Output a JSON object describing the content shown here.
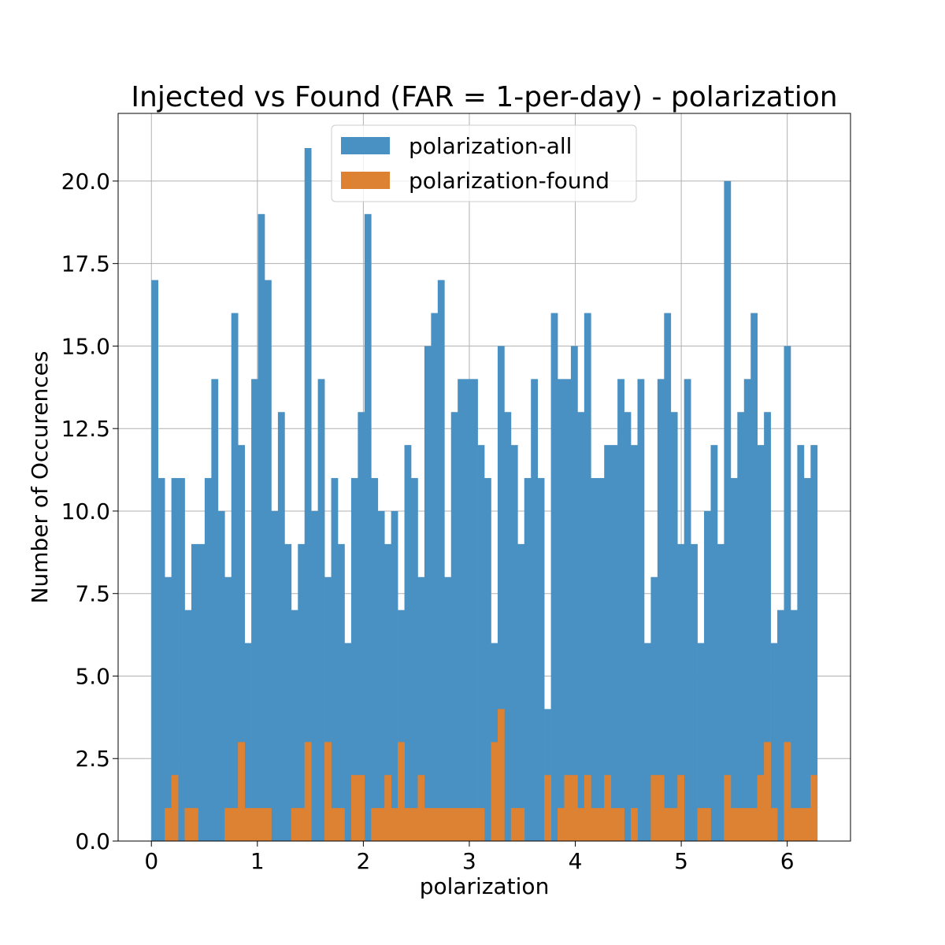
{
  "chart_data": {
    "type": "bar",
    "title": "Injected vs Found (FAR = 1-per-day) - polarization",
    "xlabel": "polarization",
    "ylabel": "Number of Occurences",
    "xlim": [
      -0.314,
      6.597
    ],
    "ylim": [
      0,
      22.05
    ],
    "xticks": [
      0,
      1,
      2,
      3,
      4,
      5,
      6
    ],
    "xtick_labels": [
      "0",
      "1",
      "2",
      "3",
      "4",
      "5",
      "6"
    ],
    "yticks": [
      0,
      2.5,
      5,
      7.5,
      10,
      12.5,
      15,
      17.5,
      20
    ],
    "ytick_labels": [
      "0.0",
      "2.5",
      "5.0",
      "7.5",
      "10.0",
      "12.5",
      "15.0",
      "17.5",
      "20.0"
    ],
    "grid": true,
    "legend_position": "upper-center",
    "bin_range": [
      0,
      6.2832
    ],
    "bins": 100,
    "series": [
      {
        "name": "polarization-all",
        "color": "#4a91c3",
        "values": [
          17,
          11,
          8,
          11,
          11,
          7,
          9,
          9,
          11,
          14,
          10,
          8,
          16,
          12,
          6,
          14,
          19,
          17,
          10,
          13,
          9,
          7,
          9,
          21,
          10,
          14,
          8,
          11,
          9,
          6,
          11,
          13,
          19,
          11,
          10,
          9,
          10,
          7,
          12,
          11,
          8,
          15,
          16,
          17,
          8,
          13,
          14,
          14,
          14,
          12,
          11,
          6,
          15,
          13,
          12,
          9,
          11,
          14,
          11,
          4,
          16,
          14,
          14,
          15,
          13,
          16,
          11,
          11,
          12,
          12,
          14,
          13,
          12,
          14,
          6,
          8,
          14,
          16,
          13,
          9,
          14,
          9,
          6,
          10,
          12,
          9,
          20,
          11,
          13,
          14,
          16,
          12,
          13,
          6,
          7,
          15,
          7,
          12,
          11,
          12
        ]
      },
      {
        "name": "polarization-found",
        "color": "#dd8233",
        "values": [
          0,
          0,
          1,
          2,
          0,
          1,
          1,
          0,
          0,
          0,
          0,
          1,
          1,
          3,
          1,
          1,
          1,
          1,
          0,
          0,
          0,
          1,
          1,
          3,
          0,
          0,
          3,
          1,
          1,
          0,
          2,
          2,
          0,
          1,
          1,
          2,
          1,
          3,
          1,
          1,
          2,
          1,
          1,
          1,
          1,
          1,
          1,
          1,
          1,
          1,
          0,
          3,
          4,
          0,
          1,
          1,
          0,
          0,
          0,
          2,
          0,
          1,
          2,
          2,
          1,
          2,
          1,
          1,
          2,
          1,
          1,
          0,
          1,
          0,
          0,
          2,
          2,
          1,
          1,
          2,
          0,
          0,
          1,
          1,
          0,
          0,
          2,
          1,
          1,
          1,
          1,
          2,
          3,
          1,
          0,
          3,
          1,
          1,
          1,
          2
        ]
      }
    ]
  }
}
